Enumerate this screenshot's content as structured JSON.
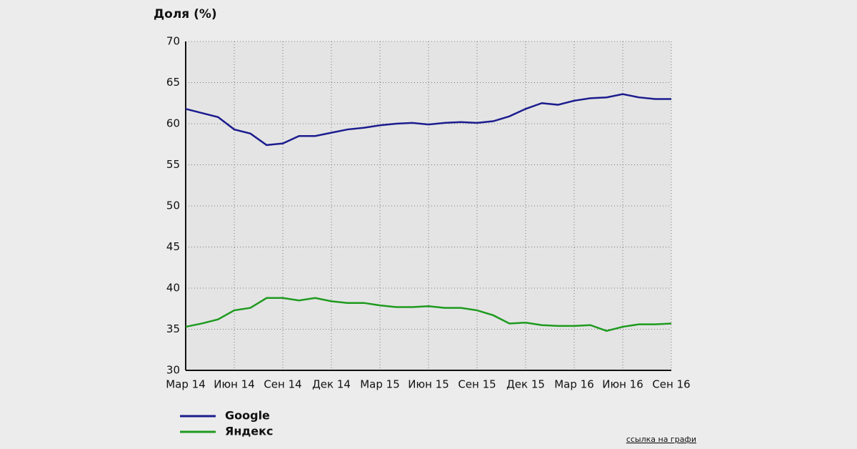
{
  "chart_data": {
    "type": "line",
    "y_axis_label": "Доля (%)",
    "link_text": "ссылка на графи",
    "categories": [
      "Мар 14",
      null,
      null,
      "Июн 14",
      null,
      null,
      "Сен 14",
      null,
      null,
      "Дек 14",
      null,
      null,
      "Мар 15",
      null,
      null,
      "Июн 15",
      null,
      null,
      "Сен 15",
      null,
      null,
      "Дек 15",
      null,
      null,
      "Мар 16",
      null,
      null,
      "Июн 16",
      null,
      null,
      "Сен 16"
    ],
    "series": [
      {
        "name": "Google",
        "color": "#1c1c8f",
        "values": [
          61.8,
          61.3,
          60.8,
          59.3,
          58.8,
          57.4,
          57.6,
          58.5,
          58.5,
          58.9,
          59.3,
          59.5,
          59.8,
          60.0,
          60.1,
          59.9,
          60.1,
          60.2,
          60.1,
          60.3,
          60.9,
          61.8,
          62.5,
          62.3,
          62.8,
          63.1,
          63.2,
          63.6,
          63.2,
          63.0,
          63.0
        ]
      },
      {
        "name": "Яндекс",
        "color": "#1e9a1e",
        "values": [
          35.3,
          35.7,
          36.2,
          37.3,
          37.6,
          38.8,
          38.8,
          38.5,
          38.8,
          38.4,
          38.2,
          38.2,
          37.9,
          37.7,
          37.7,
          37.8,
          37.6,
          37.6,
          37.3,
          36.7,
          35.7,
          35.8,
          35.5,
          35.4,
          35.4,
          35.5,
          34.8,
          35.3,
          35.6,
          35.6,
          35.7
        ]
      }
    ],
    "ylim": [
      30,
      70
    ],
    "yticks": [
      30,
      35,
      40,
      45,
      50,
      55,
      60,
      65,
      70
    ],
    "grid": true
  }
}
